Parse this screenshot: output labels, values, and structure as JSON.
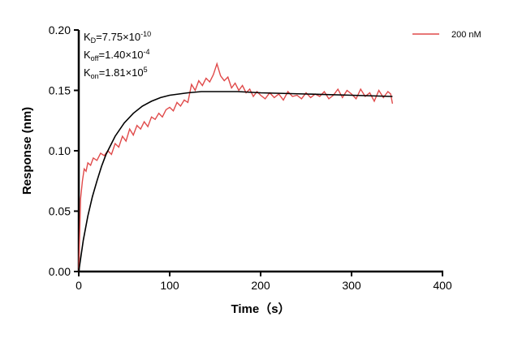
{
  "chart_data": {
    "type": "line",
    "title": "",
    "xlabel": "Time（s）",
    "ylabel": "Response (nm)",
    "xlim": [
      0,
      400
    ],
    "ylim": [
      0,
      0.2
    ],
    "xticks": [
      "0",
      "100",
      "200",
      "300",
      "400"
    ],
    "yticks": [
      "0.00",
      "0.05",
      "0.10",
      "0.15",
      "0.20"
    ],
    "grid": false,
    "legend_position": "top-right",
    "annotations": {
      "kd": {
        "label": "K",
        "sub": "D",
        "value": "=7.75×10",
        "exp": "-10"
      },
      "koff": {
        "label": "K",
        "sub": "off",
        "value": "=1.40×10",
        "exp": "-4"
      },
      "kon": {
        "label": "K",
        "sub": "on",
        "value": "=1.81×10",
        "exp": "5"
      }
    },
    "series": [
      {
        "name": "200 nM",
        "color": "#e04a4a",
        "x": [
          0,
          2,
          4,
          6,
          8,
          10,
          13,
          16,
          20,
          24,
          28,
          32,
          36,
          40,
          44,
          48,
          52,
          56,
          60,
          64,
          68,
          72,
          76,
          80,
          84,
          88,
          92,
          96,
          100,
          104,
          108,
          112,
          116,
          120,
          124,
          128,
          132,
          136,
          140,
          144,
          148,
          152,
          156,
          160,
          164,
          168,
          172,
          176,
          180,
          184,
          188,
          192,
          196,
          200,
          205,
          210,
          215,
          220,
          225,
          230,
          235,
          240,
          245,
          250,
          255,
          260,
          265,
          270,
          275,
          280,
          285,
          290,
          295,
          300,
          305,
          310,
          315,
          320,
          325,
          330,
          335,
          340,
          343,
          345
        ],
        "y": [
          0,
          0.06,
          0.075,
          0.085,
          0.083,
          0.09,
          0.088,
          0.094,
          0.092,
          0.098,
          0.096,
          0.1,
          0.097,
          0.106,
          0.103,
          0.112,
          0.108,
          0.118,
          0.113,
          0.121,
          0.118,
          0.124,
          0.12,
          0.128,
          0.126,
          0.131,
          0.128,
          0.134,
          0.136,
          0.133,
          0.14,
          0.137,
          0.142,
          0.14,
          0.155,
          0.15,
          0.158,
          0.154,
          0.16,
          0.157,
          0.163,
          0.172,
          0.162,
          0.158,
          0.161,
          0.152,
          0.156,
          0.15,
          0.154,
          0.148,
          0.151,
          0.145,
          0.149,
          0.146,
          0.143,
          0.148,
          0.144,
          0.147,
          0.142,
          0.149,
          0.145,
          0.146,
          0.143,
          0.148,
          0.144,
          0.147,
          0.145,
          0.149,
          0.143,
          0.146,
          0.151,
          0.144,
          0.15,
          0.147,
          0.143,
          0.151,
          0.145,
          0.148,
          0.141,
          0.15,
          0.144,
          0.149,
          0.147,
          0.139
        ]
      },
      {
        "color": "#000000",
        "x": [
          0,
          5,
          10,
          15,
          20,
          25,
          30,
          40,
          50,
          60,
          70,
          80,
          90,
          100,
          110,
          120,
          135,
          150,
          175,
          200,
          250,
          300,
          345
        ],
        "y": [
          0,
          0.026,
          0.046,
          0.062,
          0.075,
          0.087,
          0.097,
          0.112,
          0.123,
          0.131,
          0.137,
          0.141,
          0.144,
          0.146,
          0.147,
          0.148,
          0.149,
          0.149,
          0.149,
          0.148,
          0.147,
          0.146,
          0.145
        ]
      }
    ]
  }
}
